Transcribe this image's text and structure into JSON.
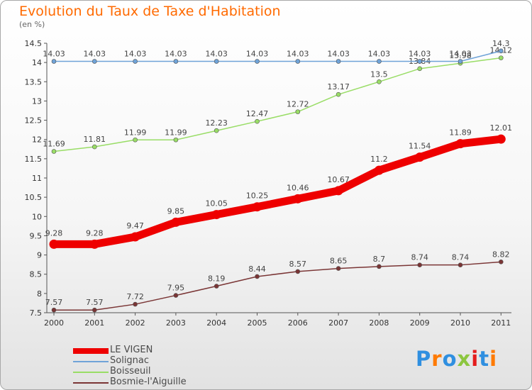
{
  "header": {
    "title": "Evolution du Taux de Taxe d'Habitation",
    "unit": "(en %)"
  },
  "brand": {
    "text": "Proxiti",
    "colors": [
      "#2f8fe0",
      "#ff7a00",
      "#2f8fe0",
      "#8cc63f",
      "#e41c1c",
      "#2f8fe0",
      "#ff7a00"
    ]
  },
  "chart_data": {
    "type": "line",
    "title": "Evolution du Taux de Taxe d'Habitation",
    "ylabel": "(en %)",
    "xlabel": "",
    "x": [
      "2000",
      "2001",
      "2002",
      "2003",
      "2004",
      "2005",
      "2006",
      "2007",
      "2008",
      "2009",
      "2010",
      "2011"
    ],
    "ylim": [
      7.5,
      14.5
    ],
    "yticks": [
      7.5,
      8,
      8.5,
      9,
      9.5,
      10,
      10.5,
      11,
      11.5,
      12,
      12.5,
      13,
      13.5,
      14,
      14.5
    ],
    "grid": false,
    "legend": "bottom-left",
    "series": [
      {
        "name": "LE VIGEN",
        "color": "#ee0000",
        "values": [
          9.28,
          9.28,
          9.47,
          9.85,
          10.05,
          10.25,
          10.46,
          10.67,
          11.2,
          11.54,
          11.89,
          12.01
        ],
        "labels": [
          "9.28",
          "9.28",
          "9.47",
          "9.85",
          "10.05",
          "10.25",
          "10.46",
          "10.67",
          "11.2",
          "11.54",
          "11.89",
          "12.01"
        ]
      },
      {
        "name": "Solignac",
        "color": "#6fa3d8",
        "values": [
          14.03,
          14.03,
          14.03,
          14.03,
          14.03,
          14.03,
          14.03,
          14.03,
          14.03,
          14.03,
          14.03,
          14.3
        ],
        "labels": [
          "14.03",
          "14.03",
          "14.03",
          "14.03",
          "14.03",
          "14.03",
          "14.03",
          "14.03",
          "14.03",
          "14.03",
          "14.03",
          "14.3"
        ]
      },
      {
        "name": "Boisseuil",
        "color": "#99dd66",
        "values": [
          11.69,
          11.81,
          11.99,
          11.99,
          12.23,
          12.47,
          12.72,
          13.17,
          13.5,
          13.84,
          13.98,
          14.12
        ],
        "labels": [
          "11.69",
          "11.81",
          "11.99",
          "11.99",
          "12.23",
          "12.47",
          "12.72",
          "13.17",
          "13.5",
          "13.84",
          "13.98",
          "14.12"
        ]
      },
      {
        "name": "Bosmie-l'Aiguille",
        "color": "#7a3535",
        "values": [
          7.57,
          7.57,
          7.72,
          7.95,
          8.19,
          8.44,
          8.57,
          8.65,
          8.7,
          8.74,
          8.74,
          8.82
        ],
        "labels": [
          "7.57",
          "7.57",
          "7.72",
          "7.95",
          "8.19",
          "8.44",
          "8.57",
          "8.65",
          "8.7",
          "8.74",
          "8.74",
          "8.82"
        ]
      }
    ]
  }
}
